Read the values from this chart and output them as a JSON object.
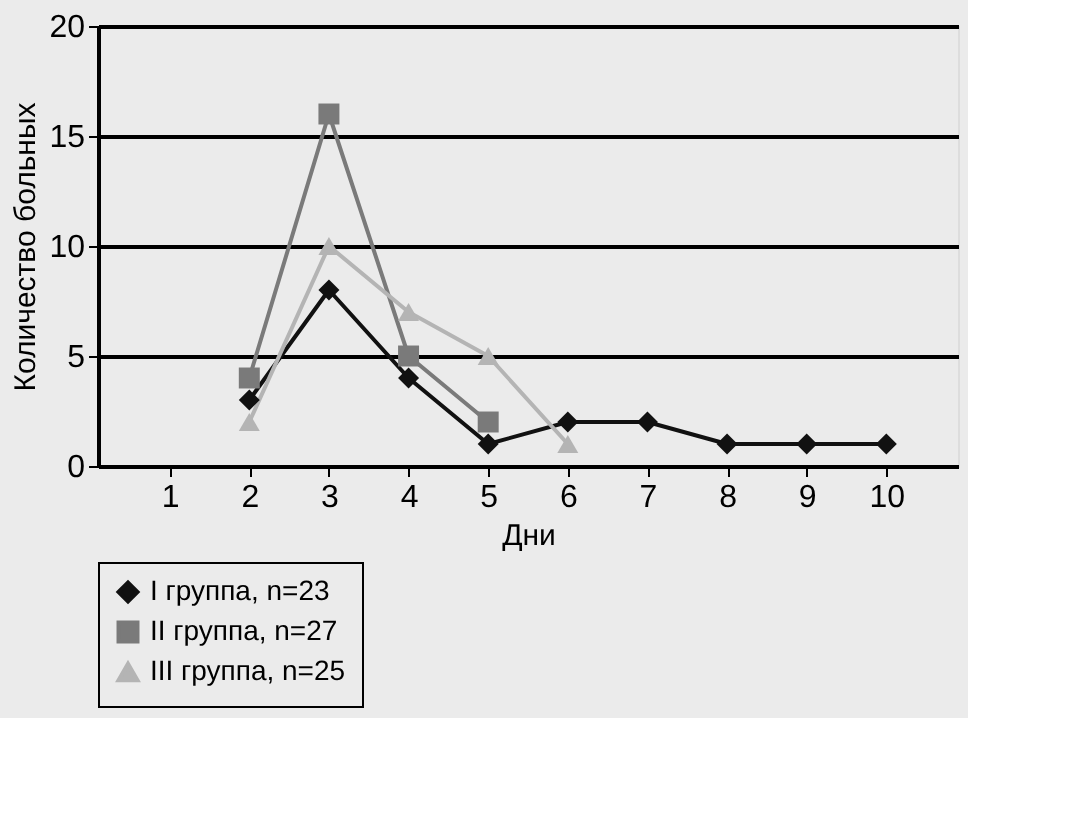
{
  "chart_data": {
    "type": "line",
    "xlabel": "Дни",
    "ylabel": "Количество больных",
    "categories": [
      "1",
      "2",
      "3",
      "4",
      "5",
      "6",
      "7",
      "8",
      "9",
      "10"
    ],
    "series": [
      {
        "name": "I группа, n=23",
        "color": "#111111",
        "marker": "diamond",
        "values": [
          null,
          3,
          8,
          4,
          1,
          2,
          2,
          1,
          1,
          1
        ]
      },
      {
        "name": "II группа, n=27",
        "color": "#7a7a7a",
        "marker": "square",
        "values": [
          null,
          4,
          16,
          5,
          2,
          null,
          null,
          null,
          null,
          null
        ]
      },
      {
        "name": "III группа, n=25",
        "color": "#b4b4b4",
        "marker": "triangle",
        "values": [
          null,
          2,
          10,
          7,
          5,
          1,
          null,
          null,
          null,
          null
        ]
      }
    ],
    "ylim": [
      0,
      20
    ],
    "yticks": [
      0,
      5,
      10,
      15,
      20
    ],
    "grid": "y",
    "legend": "bottom",
    "line_style": "solid"
  }
}
